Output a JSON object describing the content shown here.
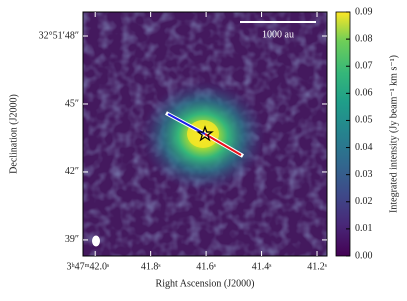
{
  "chart_data": {
    "type": "image",
    "xlabel": "Right Ascension (J2000)",
    "ylabel": "Declination (J2000)",
    "xlim": [
      42.044,
      41.164
    ],
    "xticks": [
      {
        "value": 42.0,
        "label": "3ʰ47ᵐ42.0ˢ"
      },
      {
        "value": 41.8,
        "label": "41.8ˢ"
      },
      {
        "value": 41.6,
        "label": "41.6ˢ"
      },
      {
        "value": 41.4,
        "label": "41.4ˢ"
      },
      {
        "value": 41.2,
        "label": "41.2ˢ"
      }
    ],
    "ylim": [
      38.29,
      49.06
    ],
    "yticks": [
      {
        "value": 48,
        "label": "32°51′48″"
      },
      {
        "value": 45,
        "label": "45″"
      },
      {
        "value": 42,
        "label": "42″"
      },
      {
        "value": 39,
        "label": "39″"
      }
    ],
    "colorbar_label": "Integrated intensity (Jy beam⁻¹ km s⁻¹)",
    "clim": [
      0,
      0.09
    ],
    "cticks": [
      {
        "value": 0,
        "label": "0.00"
      },
      {
        "value": 0.01,
        "label": "0.01"
      },
      {
        "value": 0.02,
        "label": "0.02"
      },
      {
        "value": 0.03,
        "label": "0.03"
      },
      {
        "value": 0.04,
        "label": "0.04"
      },
      {
        "value": 0.05,
        "label": "0.05"
      },
      {
        "value": 0.06,
        "label": "0.06"
      },
      {
        "value": 0.07,
        "label": "0.07"
      },
      {
        "value": 0.08,
        "label": "0.08"
      },
      {
        "value": 0.09,
        "label": "0.09"
      }
    ],
    "scalebar_label": "1000 au"
  }
}
